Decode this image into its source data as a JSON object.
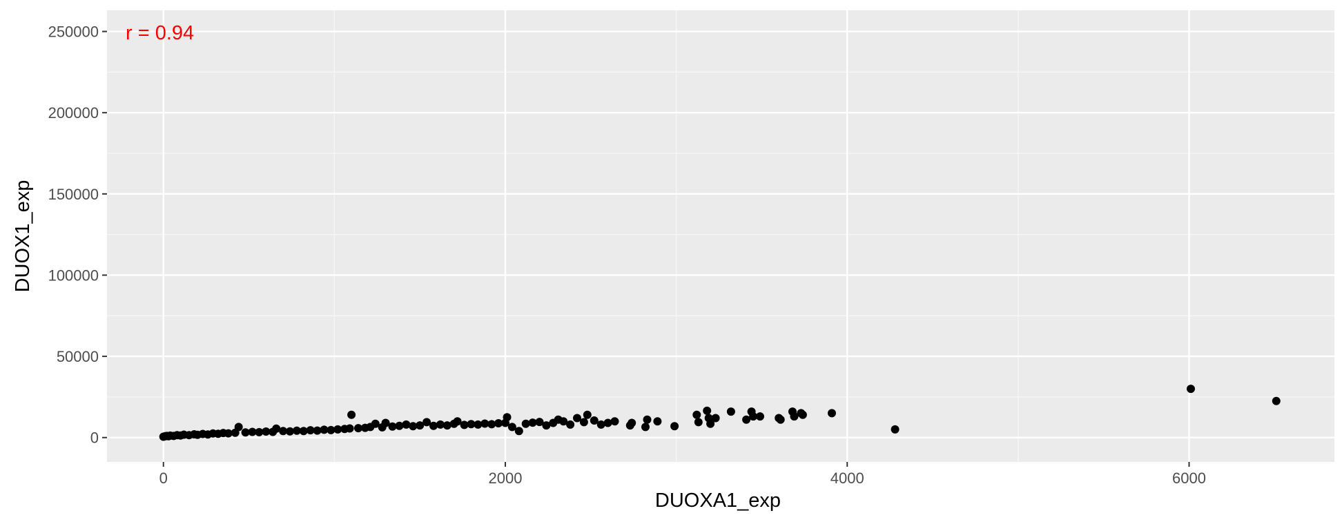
{
  "chart_data": {
    "type": "scatter",
    "title": "",
    "xlabel": "DUOXA1_exp",
    "ylabel": "DUOX1_exp",
    "xlim": [
      -330,
      6850
    ],
    "ylim": [
      -15000,
      263000
    ],
    "x_ticks": [
      0,
      2000,
      4000,
      6000
    ],
    "x_tick_labels": [
      "0",
      "2000",
      "4000",
      "6000"
    ],
    "y_ticks": [
      0,
      50000,
      100000,
      150000,
      200000,
      250000
    ],
    "y_tick_labels": [
      "0",
      "50000",
      "100000",
      "150000",
      "200000",
      "250000"
    ],
    "grid": true,
    "legend": "none",
    "annotation": {
      "text": "r = 0.94",
      "color": "#ff0000",
      "position": "top-left"
    },
    "point_color": "#000000",
    "panel_background": "#ebebeb",
    "series": [
      {
        "x": [
          0,
          10,
          20,
          30,
          40,
          60,
          80,
          100,
          120,
          150,
          180,
          200,
          230,
          260,
          290,
          320,
          350,
          380,
          420,
          440,
          480,
          520,
          560,
          600,
          640,
          660,
          700,
          740,
          780,
          820,
          860,
          900,
          940,
          980,
          1020,
          1060,
          1090,
          1100,
          1140,
          1180,
          1210,
          1240,
          1280,
          1300,
          1340,
          1380,
          1420,
          1460,
          1500,
          1540,
          1580,
          1620,
          1660,
          1700,
          1720,
          1760,
          1800,
          1840,
          1880,
          1920,
          1960,
          2000,
          2010,
          2040,
          2080,
          2120,
          2160,
          2200,
          2240,
          2280,
          2310,
          2340,
          2380,
          2420,
          2460,
          2480,
          2520,
          2560,
          2600,
          2640,
          2730,
          2740,
          2820,
          2830,
          2890,
          2990,
          3120,
          3130,
          3180,
          3190,
          3200,
          3230,
          3320,
          3410,
          3440,
          3450,
          3490,
          3600,
          3610,
          3680,
          3690,
          3730,
          3740,
          3910,
          4280,
          6010,
          6510
        ],
        "y": [
          500,
          800,
          1000,
          800,
          1200,
          1000,
          1500,
          1300,
          1800,
          1500,
          2000,
          1700,
          2200,
          1900,
          2500,
          2300,
          2800,
          2600,
          3000,
          6500,
          3200,
          3500,
          3300,
          3700,
          3500,
          5500,
          4000,
          3800,
          4200,
          4000,
          4500,
          4300,
          4800,
          4600,
          5000,
          5300,
          5600,
          14000,
          5800,
          6000,
          6500,
          8500,
          6300,
          9000,
          6800,
          7200,
          8000,
          7000,
          7500,
          9500,
          7200,
          8000,
          7500,
          8500,
          10000,
          7800,
          8300,
          8000,
          8600,
          8200,
          8800,
          9000,
          12500,
          6500,
          4000,
          8500,
          9200,
          9600,
          7500,
          9000,
          11000,
          10000,
          8000,
          12000,
          9500,
          14000,
          10500,
          8000,
          9000,
          10000,
          7500,
          9000,
          6500,
          11000,
          10000,
          7000,
          14000,
          9500,
          16500,
          12000,
          8500,
          12000,
          16000,
          11000,
          16000,
          13000,
          13000,
          12000,
          11000,
          16000,
          13000,
          15000,
          14000,
          15000,
          5000,
          30000,
          22500
        ]
      }
    ]
  }
}
